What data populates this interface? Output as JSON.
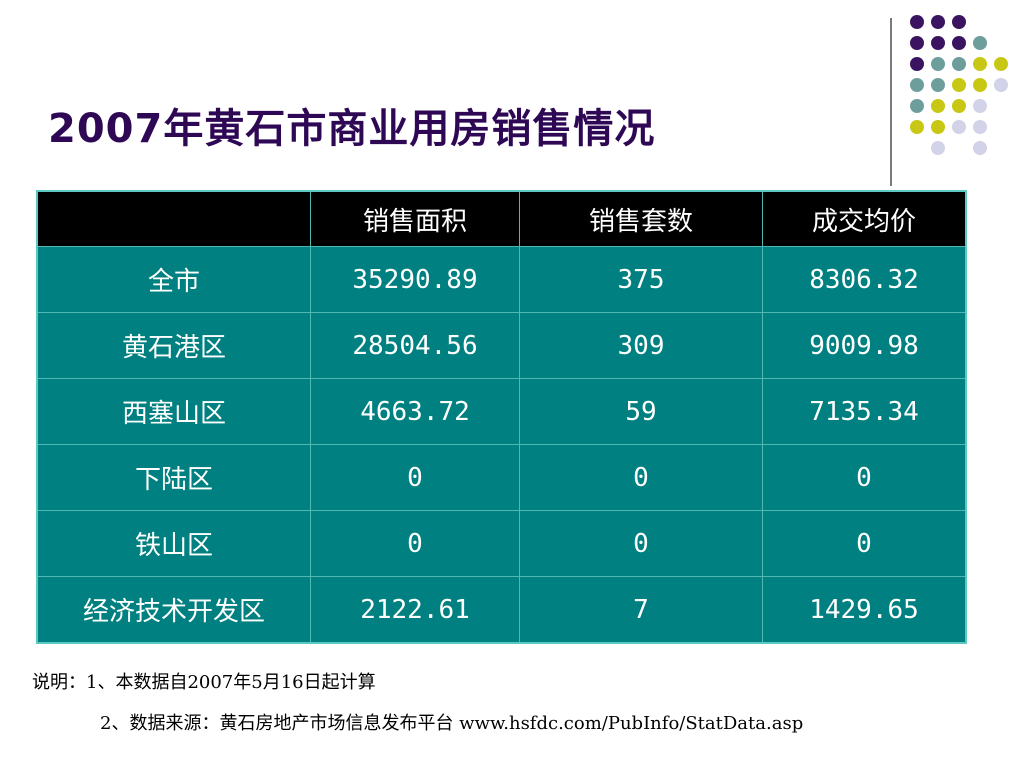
{
  "title": "2007年黄石市商业用房销售情况",
  "table": {
    "headers": [
      "",
      "销售面积",
      "销售套数",
      "成交均价"
    ],
    "rows": [
      [
        "全市",
        "35290.89",
        "375",
        "8306.32"
      ],
      [
        "黄石港区",
        "28504.56",
        "309",
        "9009.98"
      ],
      [
        "西塞山区",
        "4663.72",
        "59",
        "7135.34"
      ],
      [
        "下陆区",
        "0",
        "0",
        "0"
      ],
      [
        "铁山区",
        "0",
        "0",
        "0"
      ],
      [
        "经济技术开发区",
        "2122.61",
        "7",
        "1429.65"
      ]
    ]
  },
  "notes": {
    "line1": "说明：1、本数据自2007年5月16日起计算",
    "line2": "2、数据来源：黄石房地产市场信息发布平台 www.hsfdc.com/PubInfo/StatData.asp"
  },
  "colors": {
    "title": "#2e0854",
    "table_header_bg": "#000000",
    "table_body_bg": "#008080",
    "dot_purple": "#3b1461",
    "dot_teal": "#6e9e9c",
    "dot_yellow": "#c8c814",
    "dot_lavender": "#d2d2e8"
  }
}
